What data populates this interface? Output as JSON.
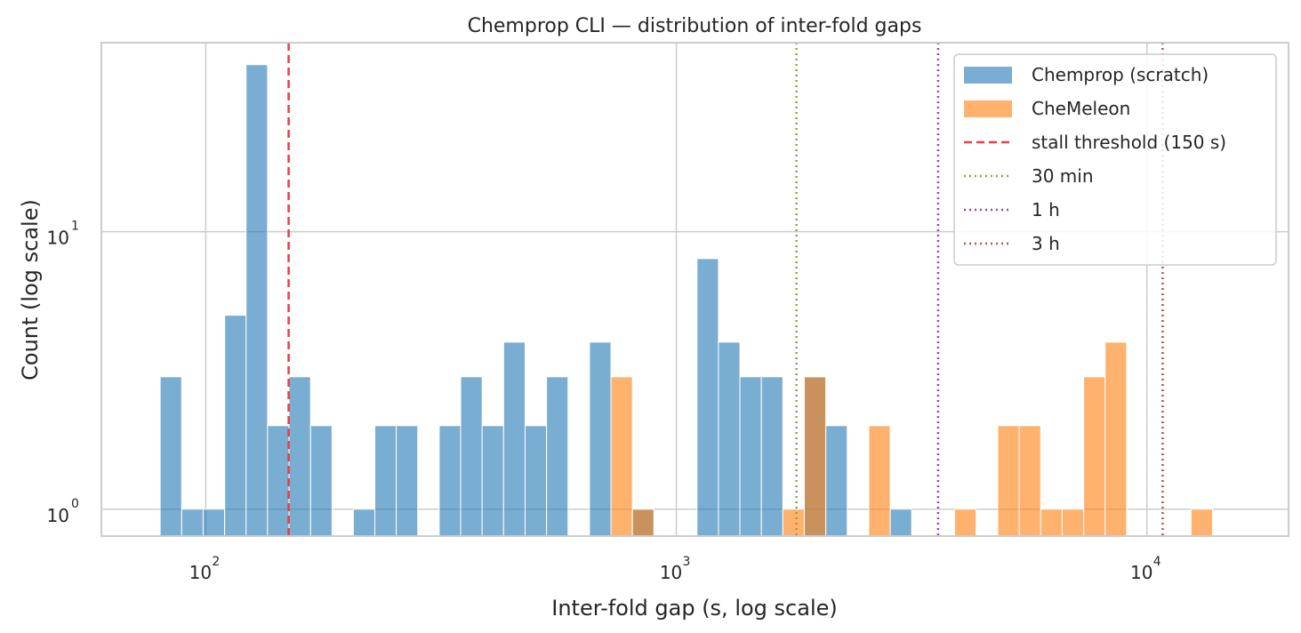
{
  "chart_data": {
    "type": "bar",
    "title": "Chemprop CLI — distribution of inter-fold gaps",
    "xlabel": "Inter-fold gap (s, log scale)",
    "ylabel": "Count (log scale)",
    "xscale": "log",
    "yscale": "log",
    "xlim": [
      60,
      20000
    ],
    "ylim": [
      0.8,
      48
    ],
    "xticks": [
      {
        "value": 100,
        "base": "10",
        "exp": "2"
      },
      {
        "value": 1000,
        "base": "10",
        "exp": "3"
      },
      {
        "value": 10000,
        "base": "10",
        "exp": "4"
      }
    ],
    "yticks": [
      {
        "value": 1,
        "base": "10",
        "exp": "0"
      },
      {
        "value": 10,
        "base": "10",
        "exp": "1"
      }
    ],
    "grid": true,
    "legend_position": "top-right",
    "series": [
      {
        "name": "Chemprop (scratch)",
        "color": "#1f77b4",
        "opacity": 0.6,
        "bins": [
          [
            80,
            3
          ],
          [
            88.9,
            1
          ],
          [
            98.7,
            1
          ],
          [
            109.7,
            5
          ],
          [
            121.8,
            40
          ],
          [
            135.3,
            2
          ],
          [
            150.3,
            3
          ],
          [
            167,
            2
          ],
          [
            205.9,
            1
          ],
          [
            228.7,
            2
          ],
          [
            254,
            2
          ],
          [
            313.4,
            2
          ],
          [
            348.1,
            3
          ],
          [
            386.6,
            2
          ],
          [
            429.5,
            4
          ],
          [
            477.1,
            2
          ],
          [
            529.9,
            3
          ],
          [
            653.8,
            4
          ],
          [
            806.6,
            1
          ],
          [
            1106.2,
            8
          ],
          [
            1228.8,
            4
          ],
          [
            1364.9,
            3
          ],
          [
            1516.2,
            3
          ],
          [
            1870.6,
            3
          ],
          [
            2077.8,
            2
          ],
          [
            2847.5,
            1
          ]
        ]
      },
      {
        "name": "CheMeleon",
        "color": "#ff7f0e",
        "opacity": 0.6,
        "bins": [
          [
            726.2,
            3
          ],
          [
            806.6,
            1
          ],
          [
            1684,
            1
          ],
          [
            1870.6,
            3
          ],
          [
            2563.5,
            2
          ],
          [
            3902.3,
            1
          ],
          [
            4819.4,
            2
          ],
          [
            5353.5,
            2
          ],
          [
            5947,
            1
          ],
          [
            6605.6,
            1
          ],
          [
            7337.7,
            3
          ],
          [
            8150.8,
            4
          ],
          [
            12408,
            1
          ]
        ]
      }
    ],
    "bin_ratio": 1.1108,
    "bar_bottom": 0.8,
    "reference_lines": [
      {
        "name": "stall threshold (150 s)",
        "x": 150,
        "color": "#ef3b3b",
        "style": "dashed"
      },
      {
        "name": "30 min",
        "x": 1800,
        "color": "#8fa33a",
        "style": "dotted"
      },
      {
        "name": "1 h",
        "x": 3600,
        "color": "#9a44b8",
        "style": "dotted"
      },
      {
        "name": "3 h",
        "x": 10800,
        "color": "#c0504d",
        "style": "dotted"
      }
    ]
  }
}
